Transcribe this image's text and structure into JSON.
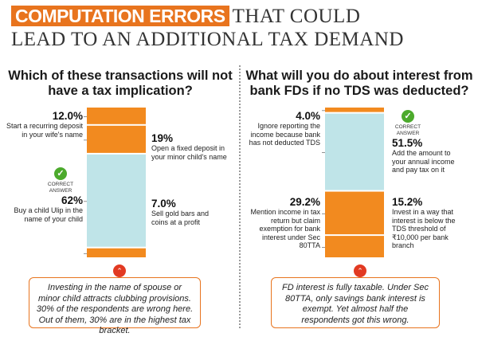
{
  "header": {
    "highlight": "COMPUTATION ERRORS",
    "title_rest_line1": "THAT COULD",
    "title_line2": "LEAD TO AN ADDITIONAL TAX DEMAND"
  },
  "colors": {
    "orange": "#f28a1f",
    "teal": "#bfe4e8",
    "green": "#4caa2c",
    "red": "#e23a22"
  },
  "correct_text": [
    "CORRECT",
    "ANSWER"
  ],
  "check_icon": "✓",
  "note_icon": "⌃",
  "left": {
    "question": "Which of these transactions will not have a tax implication?",
    "note": "Investing in the name of spouse or minor child attracts clubbing provisions. 30% of the respondents are wrong here. Out of them, 30% are in the highest tax bracket."
  },
  "right": {
    "question": "What will you do about interest from bank FDs if no TDS was deducted?",
    "note": "FD interest is fully taxable. Under Sec 80TTA, only savings bank interest is exempt. Yet almost half the respondents got this wrong."
  },
  "chart_data": [
    {
      "type": "bar",
      "stacked": true,
      "title": "Which of these transactions will not have a tax implication?",
      "segments_bottom_to_top": [
        {
          "label": "Sell gold bars and coins at a profit",
          "value": 7.0,
          "pct": "7.0%",
          "color": "orange"
        },
        {
          "label": "Buy a child Ulip in the name of your child",
          "value": 62,
          "pct": "62%",
          "color": "teal",
          "correct": true
        },
        {
          "label": "Open a fixed deposit in your minor child's name",
          "value": 19,
          "pct": "19%",
          "color": "orange"
        },
        {
          "label": "Start a recurring deposit in your wife's name",
          "value": 12.0,
          "pct": "12.0%",
          "color": "orange"
        }
      ]
    },
    {
      "type": "bar",
      "stacked": true,
      "title": "What will you do about interest from bank FDs if no TDS was deducted?",
      "segments_bottom_to_top": [
        {
          "label": "Invest in a way that interest is below the TDS threshold of ₹10,000 per bank branch",
          "value": 15.2,
          "pct": "15.2%",
          "color": "orange"
        },
        {
          "label": "Mention income in tax return but claim exemption for bank interest under Sec 80TTA",
          "value": 29.2,
          "pct": "29.2%",
          "color": "orange"
        },
        {
          "label": "Add the amount to your annual income and pay tax on it",
          "value": 51.5,
          "pct": "51.5%",
          "color": "teal",
          "correct": true
        },
        {
          "label": "Ignore reporting the income because bank has not deducted TDS",
          "value": 4.0,
          "pct": "4.0%",
          "color": "orange"
        }
      ]
    }
  ]
}
